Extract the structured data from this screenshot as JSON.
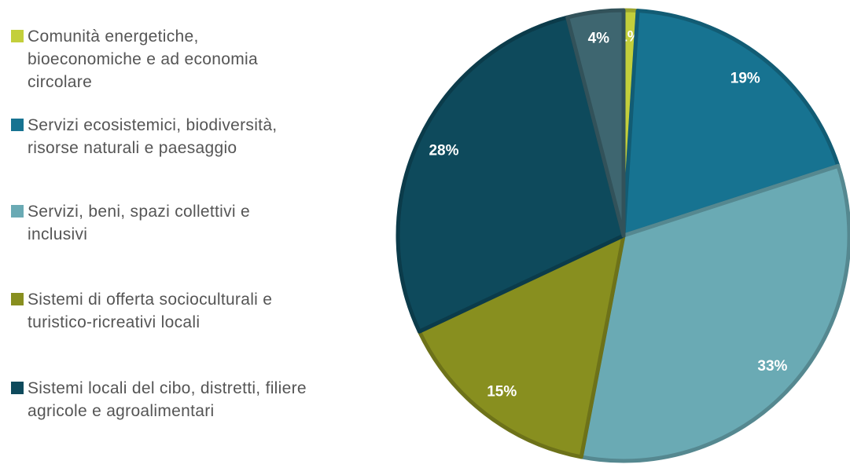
{
  "chart_data": {
    "type": "pie",
    "categories": [
      "Comunità energetiche, bioeconomiche e ad economia circolare",
      "Servizi ecosistemici, biodiversità, risorse naturali e paesaggio",
      "Servizi, beni, spazi collettivi e inclusivi",
      "Sistemi di offerta socioculturali e turistico-ricreativi locali",
      "Sistemi locali del cibo, distretti, filiere agricole e agroalimentari",
      null
    ],
    "values": [
      1,
      19,
      33,
      15,
      28,
      4
    ],
    "value_labels": [
      "1%",
      "19%",
      "33%",
      "15%",
      "28%",
      "4%"
    ],
    "colors": [
      "#c3cf3b",
      "#177391",
      "#6aaab4",
      "#888f1f",
      "#0e4a5c",
      "#3e6670"
    ],
    "legend": "left"
  }
}
